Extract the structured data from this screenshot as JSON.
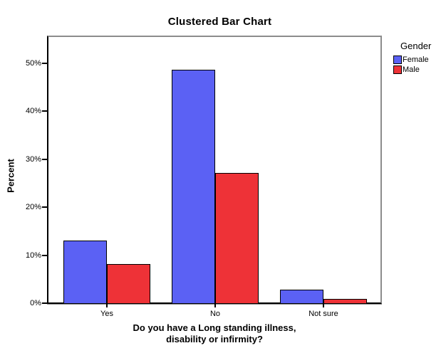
{
  "chart_data": {
    "type": "bar",
    "title": "Clustered Bar Chart",
    "categories": [
      "Yes",
      "No",
      "Not sure"
    ],
    "series": [
      {
        "name": "Female",
        "color": "#5B61F4",
        "values": [
          13.0,
          48.7,
          2.8
        ]
      },
      {
        "name": "Male",
        "color": "#EE3237",
        "values": [
          8.1,
          27.1,
          0.9
        ]
      }
    ],
    "xlabel": "Do you have a Long standing illness, disability or infirmity?",
    "xlabel_lines": [
      "Do you have a Long standing illness,",
      "disability or infirmity?"
    ],
    "ylabel": "Percent",
    "yticks": [
      0,
      10,
      20,
      30,
      40,
      50
    ],
    "ytick_labels": [
      "0%",
      "10%",
      "20%",
      "30%",
      "40%",
      "50%"
    ],
    "ylim": [
      0,
      55.8
    ],
    "grid": false,
    "legend": {
      "title": "Gender",
      "position": "right"
    }
  }
}
